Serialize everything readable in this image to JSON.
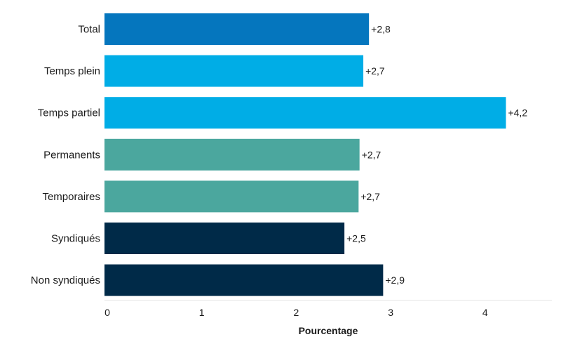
{
  "chart_data": {
    "type": "bar",
    "orientation": "horizontal",
    "title": "",
    "xlabel": "Pourcentage",
    "ylabel": "",
    "xlim": [
      0,
      4.75
    ],
    "xticks": [
      "0",
      "1",
      "2",
      "3",
      "4"
    ],
    "grid": false,
    "legend": "none",
    "categories": [
      "Total",
      "Temps plein",
      "Temps partiel",
      "Permanents",
      "Temporaires",
      "Syndiqués",
      "Non syndiqués"
    ],
    "values": [
      2.8,
      2.74,
      4.25,
      2.7,
      2.69,
      2.54,
      2.95
    ],
    "value_labels": [
      "+2,8",
      "+2,7",
      "+4,2",
      "+2,7",
      "+2,7",
      "+2,5",
      "+2,9"
    ],
    "colors": [
      "#0576be",
      "#00ade6",
      "#00ade6",
      "#4ba79e",
      "#4ba79e",
      "#002a48",
      "#002a48"
    ]
  }
}
